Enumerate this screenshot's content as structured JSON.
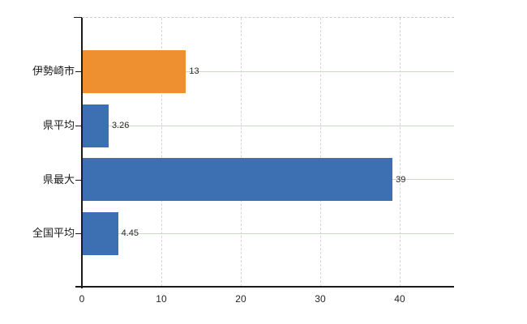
{
  "chart_data": {
    "type": "bar",
    "orientation": "horizontal",
    "title": "",
    "xlabel": "",
    "ylabel": "",
    "categories": [
      "伊勢崎市",
      "県平均",
      "県最大",
      "全国平均"
    ],
    "values": [
      13,
      3.26,
      39,
      4.45
    ],
    "value_labels": [
      "13",
      "3.26",
      "39",
      "4.45"
    ],
    "bar_colors": [
      "#ee9030",
      "#3d70b2",
      "#3d70b2",
      "#3d70b2"
    ],
    "x_ticks": [
      0,
      10,
      20,
      30,
      40
    ],
    "x_tick_labels": [
      "0",
      "10",
      "20",
      "30",
      "40"
    ],
    "xlim": [
      0,
      46.84
    ],
    "grid": true,
    "legend": "none"
  },
  "style": {
    "background": "#ffffff",
    "h_grid_color": "#ccd6cb",
    "v_grid_color": "#d9d2d9",
    "top_border_color": "#cfc9cf",
    "axis_color": "#1a1a1a",
    "label_color": "#262626",
    "category_color": "#1a1a1a",
    "bar_orange": "#ee9030",
    "bar_blue": "#3d70b2"
  }
}
